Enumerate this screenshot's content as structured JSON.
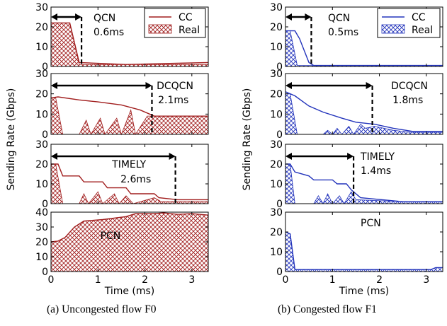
{
  "figures": [
    {
      "color": "#a11e1e",
      "fill_pattern": "red-crosshatch",
      "caption": "(a)  Uncongested flow F0",
      "ylabel": "Sending Rate (Gbps)",
      "xlabel": "Time (ms)",
      "legend": {
        "cc": "CC",
        "real": "Real"
      },
      "panels": [
        {
          "algorithm": "QCN",
          "annotation": "0.6ms",
          "marker_ms": 0.65,
          "ylim": [
            0,
            30
          ],
          "yticks": [
            "0",
            "10",
            "20",
            "30"
          ],
          "cc": [
            [
              0,
              22
            ],
            [
              0.4,
              22
            ],
            [
              0.6,
              2
            ],
            [
              1.6,
              1
            ],
            [
              3.35,
              2
            ]
          ],
          "real": [
            [
              0,
              22
            ],
            [
              0.4,
              22
            ],
            [
              0.6,
              1
            ],
            [
              3.35,
              1
            ]
          ]
        },
        {
          "algorithm": "DCQCN",
          "annotation": "2.1ms",
          "marker_ms": 2.15,
          "ylim": [
            0,
            30
          ],
          "yticks": [
            "0",
            "10",
            "20",
            "30"
          ],
          "cc": [
            [
              0,
              18
            ],
            [
              0.15,
              18.5
            ],
            [
              0.6,
              17
            ],
            [
              1,
              16
            ],
            [
              1.5,
              14.5
            ],
            [
              1.9,
              12
            ],
            [
              2.1,
              10
            ],
            [
              2.2,
              9
            ],
            [
              3.35,
              9
            ]
          ],
          "real": [
            [
              0,
              18
            ],
            [
              0.1,
              18
            ],
            [
              0.25,
              0
            ],
            [
              0.6,
              0
            ],
            [
              0.75,
              7
            ],
            [
              0.85,
              0
            ],
            [
              1.05,
              8
            ],
            [
              1.15,
              0
            ],
            [
              1.4,
              8
            ],
            [
              1.5,
              0
            ],
            [
              1.7,
              12
            ],
            [
              1.8,
              0
            ],
            [
              2.05,
              9
            ],
            [
              2.2,
              9
            ],
            [
              3.35,
              9
            ]
          ]
        },
        {
          "algorithm": "TIMELY",
          "annotation": "2.6ms",
          "marker_ms": 2.65,
          "ylim": [
            0,
            30
          ],
          "yticks": [
            "0",
            "10",
            "20",
            "30"
          ],
          "cc": [
            [
              0,
              20
            ],
            [
              0.15,
              20
            ],
            [
              0.25,
              14
            ],
            [
              0.6,
              14
            ],
            [
              0.7,
              11
            ],
            [
              1.1,
              11
            ],
            [
              1.2,
              8
            ],
            [
              1.6,
              8
            ],
            [
              1.7,
              5
            ],
            [
              2.2,
              5
            ],
            [
              2.3,
              3
            ],
            [
              2.7,
              2
            ],
            [
              3.35,
              2
            ]
          ],
          "real": [
            [
              0,
              20
            ],
            [
              0.1,
              20
            ],
            [
              0.25,
              0
            ],
            [
              0.6,
              0
            ],
            [
              0.7,
              5
            ],
            [
              0.8,
              0
            ],
            [
              1.0,
              6
            ],
            [
              1.1,
              0
            ],
            [
              1.35,
              5
            ],
            [
              1.45,
              0
            ],
            [
              1.6,
              4
            ],
            [
              1.75,
              0
            ],
            [
              2.2,
              3
            ],
            [
              2.35,
              1
            ],
            [
              3.35,
              1
            ]
          ]
        },
        {
          "algorithm": "PCN",
          "annotation": "",
          "marker_ms": null,
          "ylim": [
            0,
            40
          ],
          "yticks": [
            "0",
            "10",
            "20",
            "30",
            "40"
          ],
          "cc": [
            [
              0,
              20
            ],
            [
              0.15,
              20.5
            ],
            [
              0.3,
              23
            ],
            [
              0.5,
              30
            ],
            [
              0.7,
              34
            ],
            [
              1.1,
              35
            ],
            [
              1.6,
              37
            ],
            [
              1.8,
              39
            ],
            [
              2.2,
              39
            ],
            [
              2.4,
              39.5
            ],
            [
              2.7,
              38.5
            ],
            [
              3,
              39
            ],
            [
              3.35,
              38
            ]
          ],
          "real": [
            [
              0,
              20
            ],
            [
              0.15,
              20.5
            ],
            [
              0.3,
              23
            ],
            [
              0.5,
              30
            ],
            [
              0.7,
              34
            ],
            [
              1.1,
              35
            ],
            [
              1.6,
              37
            ],
            [
              1.8,
              39
            ],
            [
              2.2,
              39
            ],
            [
              2.4,
              39.5
            ],
            [
              2.7,
              38.5
            ],
            [
              3,
              39
            ],
            [
              3.35,
              38
            ]
          ]
        }
      ]
    },
    {
      "color": "#2233bb",
      "fill_pattern": "blue-crosshatch",
      "caption": "(b)  Congested flow F1",
      "ylabel": "Sending Rate (Gbps)",
      "xlabel": "Time (ms)",
      "legend": {
        "cc": "CC",
        "real": "Real"
      },
      "panels": [
        {
          "algorithm": "QCN",
          "annotation": "0.5ms",
          "marker_ms": 0.55,
          "ylim": [
            0,
            30
          ],
          "yticks": [
            "0",
            "10",
            "20",
            "30"
          ],
          "cc": [
            [
              0,
              18
            ],
            [
              0.2,
              18
            ],
            [
              0.3,
              14
            ],
            [
              0.4,
              8
            ],
            [
              0.5,
              2
            ],
            [
              0.6,
              0.5
            ],
            [
              3.35,
              0.5
            ]
          ],
          "real": [
            [
              0,
              18
            ],
            [
              0.1,
              18
            ],
            [
              0.25,
              0.5
            ],
            [
              3.35,
              0.5
            ]
          ]
        },
        {
          "algorithm": "DCQCN",
          "annotation": "1.8ms",
          "marker_ms": 1.85,
          "ylim": [
            0,
            30
          ],
          "yticks": [
            "0",
            "10",
            "20",
            "30"
          ],
          "cc": [
            [
              0,
              21
            ],
            [
              0.2,
              19
            ],
            [
              0.5,
              14
            ],
            [
              0.8,
              11
            ],
            [
              1.2,
              8
            ],
            [
              1.5,
              6
            ],
            [
              1.9,
              5
            ],
            [
              2.3,
              3
            ],
            [
              2.7,
              1.5
            ],
            [
              3.35,
              1.5
            ]
          ],
          "real": [
            [
              0,
              21
            ],
            [
              0.1,
              20
            ],
            [
              0.25,
              0
            ],
            [
              0.8,
              0
            ],
            [
              0.9,
              2
            ],
            [
              1.0,
              0
            ],
            [
              1.1,
              3
            ],
            [
              1.2,
              0
            ],
            [
              1.35,
              4
            ],
            [
              1.45,
              0
            ],
            [
              1.6,
              5
            ],
            [
              1.7,
              3
            ],
            [
              1.9,
              4
            ],
            [
              2.3,
              2
            ],
            [
              2.7,
              1
            ],
            [
              3.35,
              1
            ]
          ]
        },
        {
          "algorithm": "TIMELY",
          "annotation": "1.4ms",
          "marker_ms": 1.45,
          "ylim": [
            0,
            30
          ],
          "yticks": [
            "0",
            "10",
            "20",
            "30"
          ],
          "cc": [
            [
              0,
              20
            ],
            [
              0.1,
              20
            ],
            [
              0.2,
              16
            ],
            [
              0.5,
              14
            ],
            [
              0.6,
              12
            ],
            [
              1.0,
              12
            ],
            [
              1.1,
              10
            ],
            [
              1.3,
              10
            ],
            [
              1.4,
              7
            ],
            [
              1.6,
              3
            ],
            [
              2.5,
              1
            ],
            [
              3.35,
              1
            ]
          ],
          "real": [
            [
              0,
              20
            ],
            [
              0.1,
              20
            ],
            [
              0.2,
              0
            ],
            [
              0.6,
              0
            ],
            [
              0.7,
              4
            ],
            [
              0.8,
              0
            ],
            [
              0.9,
              5
            ],
            [
              1.0,
              0
            ],
            [
              1.15,
              4
            ],
            [
              1.25,
              0
            ],
            [
              1.4,
              6
            ],
            [
              1.5,
              2
            ],
            [
              2.5,
              1
            ],
            [
              3.35,
              1
            ]
          ]
        },
        {
          "algorithm": "PCN",
          "annotation": "",
          "marker_ms": null,
          "ylim": [
            0,
            30
          ],
          "yticks": [
            "0",
            "10",
            "20",
            "30"
          ],
          "cc": [
            [
              0,
              20
            ],
            [
              0.1,
              19
            ],
            [
              0.2,
              1
            ],
            [
              3.1,
              1
            ],
            [
              3.2,
              2
            ],
            [
              3.35,
              2
            ]
          ],
          "real": [
            [
              0,
              20
            ],
            [
              0.1,
              19
            ],
            [
              0.2,
              1
            ],
            [
              3.1,
              1
            ],
            [
              3.2,
              2
            ],
            [
              3.35,
              2
            ]
          ]
        }
      ]
    }
  ],
  "chart_data": [
    {
      "type": "line",
      "title": "(a)  Uncongested flow F0",
      "xlabel": "Time (ms)",
      "ylabel": "Sending Rate (Gbps)",
      "xlim": [
        0,
        3.35
      ],
      "xticks": [
        "0",
        "1",
        "2",
        "3"
      ],
      "series_names": [
        "CC",
        "Real"
      ],
      "subplots": [
        "QCN",
        "DCQCN",
        "TIMELY",
        "PCN"
      ]
    },
    {
      "type": "line",
      "title": "(b)  Congested flow F1",
      "xlabel": "Time (ms)",
      "ylabel": "Sending Rate (Gbps)",
      "xlim": [
        0,
        3.35
      ],
      "xticks": [
        "0",
        "1",
        "2",
        "3"
      ],
      "series_names": [
        "CC",
        "Real"
      ],
      "subplots": [
        "QCN",
        "DCQCN",
        "TIMELY",
        "PCN"
      ]
    }
  ]
}
